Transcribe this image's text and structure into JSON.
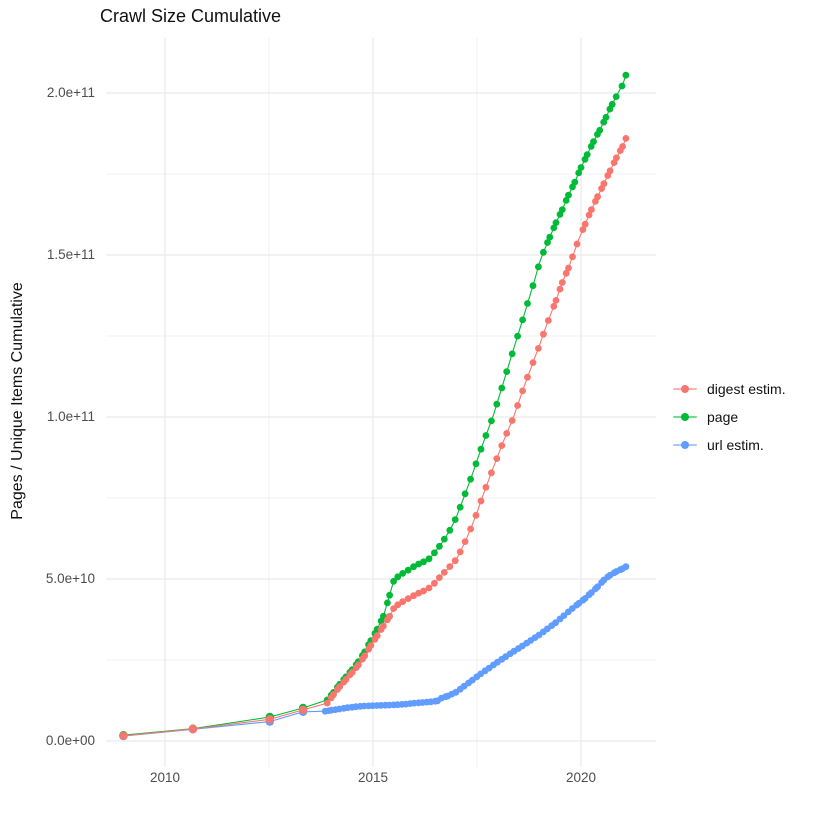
{
  "title": "Crawl Size Cumulative",
  "y_axis": {
    "label": "Pages / Unique Items Cumulative",
    "ticks": [
      "2.0e+11",
      "1.5e+11",
      "1.0e+11",
      "5.0e+10",
      "0.0e+00"
    ],
    "tick_values_billions": [
      200,
      150,
      100,
      50,
      0
    ],
    "minor_gridlines_billions": [
      175,
      125,
      75,
      25
    ]
  },
  "x_axis": {
    "ticks": [
      "2010",
      "2015",
      "2020"
    ],
    "tick_values": [
      2010,
      2015,
      2020
    ],
    "minor_gridlines": [
      2012.5,
      2017.5
    ]
  },
  "legend": {
    "position": "right",
    "items": [
      {
        "label": "digest estim.",
        "color": "#F8766D"
      },
      {
        "label": "page",
        "color": "#00BA38"
      },
      {
        "label": "url estim.",
        "color": "#619CFF"
      }
    ]
  },
  "chart_data": {
    "type": "scatter",
    "title": "Crawl Size Cumulative",
    "xlabel": "",
    "ylabel": "Pages / Unique Items Cumulative",
    "value_unit": "billions of pages / unique items (1e9)",
    "x_range": [
      2008.4,
      2021.8
    ],
    "y_range_billions": [
      -10,
      217
    ],
    "grid": "on",
    "legend_position": "right",
    "series": [
      {
        "name": "digest estim.",
        "color": "#F8766D",
        "points_year_billions": [
          [
            2009.0,
            1.6
          ],
          [
            2010.67,
            3.7
          ],
          [
            2012.52,
            6.7
          ],
          [
            2013.32,
            9.6
          ],
          [
            2013.9,
            11.7
          ],
          [
            2014.05,
            14.3
          ],
          [
            2014.2,
            16.8
          ],
          [
            2014.35,
            19.0
          ],
          [
            2014.5,
            21.2
          ],
          [
            2014.65,
            23.5
          ],
          [
            2014.8,
            26.3
          ],
          [
            2014.95,
            29.5
          ],
          [
            2015.1,
            32.5
          ],
          [
            2015.25,
            35.5
          ],
          [
            2015.4,
            38.5
          ],
          [
            2015.5,
            41.0
          ],
          [
            2015.62,
            42.3
          ],
          [
            2015.75,
            43.3
          ],
          [
            2015.88,
            44.2
          ],
          [
            2016.0,
            45.0
          ],
          [
            2016.12,
            45.8
          ],
          [
            2016.25,
            46.5
          ],
          [
            2016.38,
            47.5
          ],
          [
            2016.5,
            49.0
          ],
          [
            2016.62,
            50.8
          ],
          [
            2016.75,
            52.5
          ],
          [
            2016.88,
            54.3
          ],
          [
            2017.0,
            56.0
          ],
          [
            2017.12,
            59.0
          ],
          [
            2017.25,
            62.5
          ],
          [
            2017.38,
            66.5
          ],
          [
            2017.5,
            70.5
          ],
          [
            2017.62,
            75.0
          ],
          [
            2017.75,
            79.5
          ],
          [
            2017.88,
            84.0
          ],
          [
            2018.0,
            88.0
          ],
          [
            2018.12,
            92.0
          ],
          [
            2018.25,
            96.0
          ],
          [
            2018.38,
            100.0
          ],
          [
            2018.5,
            104.5
          ],
          [
            2018.62,
            109.0
          ],
          [
            2018.75,
            113.5
          ],
          [
            2018.88,
            118.0
          ],
          [
            2019.0,
            122.0
          ],
          [
            2019.12,
            126.5
          ],
          [
            2019.25,
            131.0
          ],
          [
            2019.4,
            136.0
          ],
          [
            2019.55,
            141.5
          ],
          [
            2019.7,
            146.0
          ],
          [
            2019.81,
            150.0
          ],
          [
            2019.95,
            155.0
          ],
          [
            2020.1,
            159.5
          ],
          [
            2020.25,
            164.0
          ],
          [
            2020.4,
            168.0
          ],
          [
            2020.55,
            172.0
          ],
          [
            2020.7,
            176.0
          ],
          [
            2020.85,
            180.0
          ],
          [
            2021.0,
            183.5
          ],
          [
            2021.08,
            186.0
          ]
        ]
      },
      {
        "name": "page",
        "color": "#00BA38",
        "points_year_billions": [
          [
            2009.0,
            1.8
          ],
          [
            2010.67,
            3.8
          ],
          [
            2012.52,
            7.4
          ],
          [
            2013.32,
            10.2
          ],
          [
            2013.9,
            12.7
          ],
          [
            2014.05,
            15.0
          ],
          [
            2014.2,
            17.5
          ],
          [
            2014.35,
            19.8
          ],
          [
            2014.5,
            22.0
          ],
          [
            2014.65,
            24.5
          ],
          [
            2014.8,
            27.5
          ],
          [
            2014.95,
            31.0
          ],
          [
            2015.1,
            34.5
          ],
          [
            2015.25,
            38.5
          ],
          [
            2015.4,
            45.0
          ],
          [
            2015.5,
            49.5
          ],
          [
            2015.62,
            51.0
          ],
          [
            2015.75,
            52.0
          ],
          [
            2015.88,
            53.0
          ],
          [
            2016.0,
            54.0
          ],
          [
            2016.12,
            54.8
          ],
          [
            2016.25,
            55.5
          ],
          [
            2016.38,
            56.5
          ],
          [
            2016.5,
            58.5
          ],
          [
            2016.62,
            60.5
          ],
          [
            2016.75,
            63.0
          ],
          [
            2016.88,
            65.8
          ],
          [
            2017.0,
            69.0
          ],
          [
            2017.12,
            73.0
          ],
          [
            2017.25,
            77.5
          ],
          [
            2017.38,
            82.0
          ],
          [
            2017.5,
            86.5
          ],
          [
            2017.62,
            91.0
          ],
          [
            2017.75,
            95.5
          ],
          [
            2017.88,
            100.0
          ],
          [
            2018.0,
            105.0
          ],
          [
            2018.12,
            110.0
          ],
          [
            2018.25,
            115.5
          ],
          [
            2018.38,
            121.0
          ],
          [
            2018.5,
            126.0
          ],
          [
            2018.62,
            131.0
          ],
          [
            2018.75,
            136.5
          ],
          [
            2018.88,
            142.0
          ],
          [
            2019.0,
            147.5
          ],
          [
            2019.1,
            151.0
          ],
          [
            2019.25,
            155.5
          ],
          [
            2019.4,
            160.0
          ],
          [
            2019.55,
            164.0
          ],
          [
            2019.7,
            168.5
          ],
          [
            2019.85,
            172.5
          ],
          [
            2020.0,
            177.0
          ],
          [
            2020.15,
            181.0
          ],
          [
            2020.3,
            185.0
          ],
          [
            2020.45,
            188.5
          ],
          [
            2020.6,
            192.5
          ],
          [
            2020.75,
            196.5
          ],
          [
            2020.89,
            200.0
          ],
          [
            2021.0,
            202.5
          ],
          [
            2021.08,
            205.5
          ]
        ]
      },
      {
        "name": "url estim.",
        "color": "#619CFF",
        "points_year_billions": [
          [
            2009.0,
            1.5
          ],
          [
            2010.67,
            3.6
          ],
          [
            2012.52,
            6.0
          ],
          [
            2013.32,
            9.0
          ],
          [
            2013.85,
            9.2
          ],
          [
            2014.0,
            9.5
          ],
          [
            2014.2,
            9.9
          ],
          [
            2014.4,
            10.3
          ],
          [
            2014.6,
            10.6
          ],
          [
            2014.8,
            10.8
          ],
          [
            2015.0,
            10.9
          ],
          [
            2015.2,
            11.0
          ],
          [
            2015.4,
            11.1
          ],
          [
            2015.6,
            11.2
          ],
          [
            2015.8,
            11.4
          ],
          [
            2016.0,
            11.7
          ],
          [
            2016.2,
            11.9
          ],
          [
            2016.4,
            12.1
          ],
          [
            2016.55,
            12.4
          ],
          [
            2016.65,
            13.3
          ],
          [
            2016.8,
            13.9
          ],
          [
            2017.0,
            15.1
          ],
          [
            2017.2,
            17.0
          ],
          [
            2017.4,
            18.9
          ],
          [
            2017.6,
            20.8
          ],
          [
            2017.8,
            22.6
          ],
          [
            2018.0,
            24.4
          ],
          [
            2018.2,
            26.1
          ],
          [
            2018.4,
            27.8
          ],
          [
            2018.6,
            29.4
          ],
          [
            2018.8,
            31.1
          ],
          [
            2019.0,
            32.8
          ],
          [
            2019.2,
            34.7
          ],
          [
            2019.4,
            36.6
          ],
          [
            2019.6,
            38.8
          ],
          [
            2019.8,
            41.0
          ],
          [
            2019.95,
            42.5
          ],
          [
            2020.1,
            44.0
          ],
          [
            2020.25,
            45.8
          ],
          [
            2020.4,
            47.6
          ],
          [
            2020.55,
            49.7
          ],
          [
            2020.7,
            51.2
          ],
          [
            2020.85,
            52.3
          ],
          [
            2021.0,
            53.2
          ],
          [
            2021.08,
            53.8
          ]
        ]
      }
    ]
  }
}
